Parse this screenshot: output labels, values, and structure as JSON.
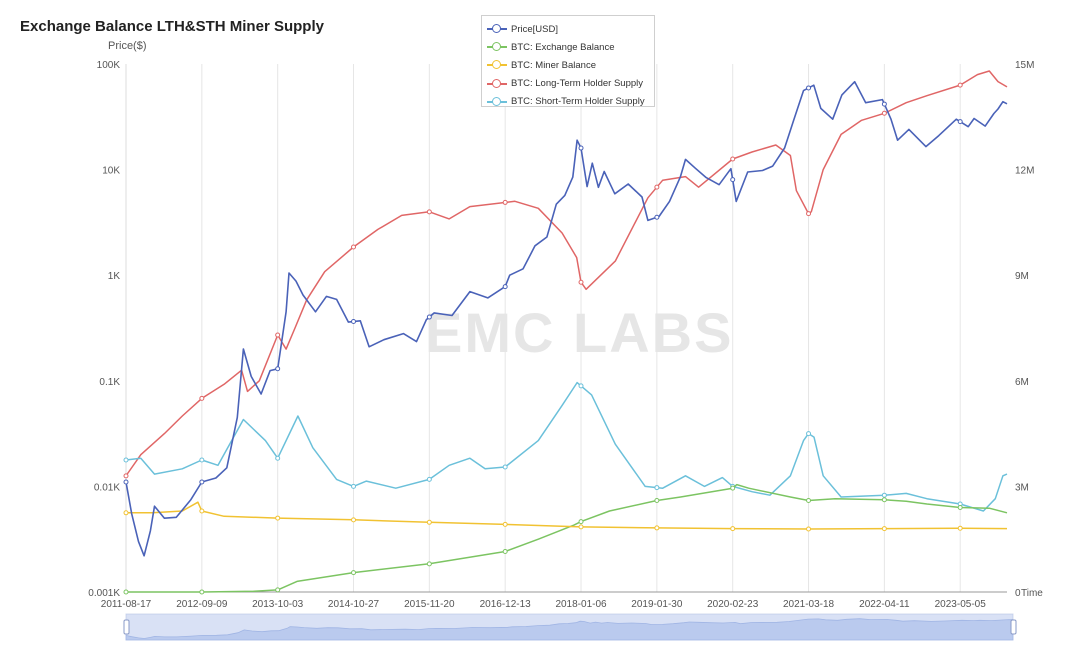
{
  "header": {
    "title": "Exchange Balance LTH&STH Miner Supply",
    "ylabel_left": "Price($)",
    "xlabel": "Time",
    "watermark": "EMC LABS"
  },
  "legend": [
    {
      "label": "Price[USD]",
      "color": "#4a62b8"
    },
    {
      "label": "BTC: Exchange Balance",
      "color": "#7cc462"
    },
    {
      "label": "BTC: Miner Balance",
      "color": "#f1c232"
    },
    {
      "label": "BTC: Long-Term Holder Supply",
      "color": "#e06666"
    },
    {
      "label": "BTC: Short-Term Holder Supply",
      "color": "#6bc0da"
    }
  ],
  "chart_data": {
    "type": "line",
    "x_ticks": [
      "2011-08-17",
      "2012-09-09",
      "2013-10-03",
      "2014-10-27",
      "2015-11-20",
      "2016-12-13",
      "2018-01-06",
      "2019-01-30",
      "2020-02-23",
      "2021-03-18",
      "2022-04-11",
      "2023-05-05"
    ],
    "y_left_ticks": [
      "0.001K",
      "0.01K",
      "0.1K",
      "1K",
      "10K",
      "100K"
    ],
    "y_left_scale": "log",
    "y_left_range": [
      1,
      100000
    ],
    "y_right_ticks": [
      "0",
      "3M",
      "6M",
      "9M",
      "12M",
      "15M"
    ],
    "y_right_range": [
      0,
      15000000
    ],
    "x_range": [
      "2011-08-17",
      "2023-12-31"
    ],
    "grid": "vertical",
    "series": [
      {
        "name": "Price[USD]",
        "axis": "left",
        "color": "#4a62b8",
        "points": [
          [
            "2011-08-17",
            11
          ],
          [
            "2011-09-15",
            5.5
          ],
          [
            "2011-10-20",
            3
          ],
          [
            "2011-11-18",
            2.2
          ],
          [
            "2011-12-20",
            3.8
          ],
          [
            "2012-01-10",
            6.5
          ],
          [
            "2012-03-01",
            5
          ],
          [
            "2012-05-01",
            5.1
          ],
          [
            "2012-07-15",
            7.5
          ],
          [
            "2012-09-09",
            11
          ],
          [
            "2012-11-20",
            12
          ],
          [
            "2013-01-15",
            15
          ],
          [
            "2013-03-10",
            45
          ],
          [
            "2013-04-10",
            200
          ],
          [
            "2013-05-20",
            110
          ],
          [
            "2013-07-10",
            75
          ],
          [
            "2013-08-25",
            125
          ],
          [
            "2013-10-03",
            130
          ],
          [
            "2013-11-15",
            450
          ],
          [
            "2013-11-30",
            1050
          ],
          [
            "2014-01-05",
            880
          ],
          [
            "2014-02-10",
            650
          ],
          [
            "2014-04-15",
            450
          ],
          [
            "2014-06-10",
            630
          ],
          [
            "2014-08-01",
            590
          ],
          [
            "2014-10-01",
            360
          ],
          [
            "2014-12-01",
            370
          ],
          [
            "2015-01-15",
            210
          ],
          [
            "2015-04-01",
            245
          ],
          [
            "2015-07-10",
            280
          ],
          [
            "2015-09-15",
            235
          ],
          [
            "2015-11-05",
            380
          ],
          [
            "2015-12-15",
            440
          ],
          [
            "2016-03-15",
            415
          ],
          [
            "2016-06-15",
            700
          ],
          [
            "2016-09-15",
            610
          ],
          [
            "2016-12-13",
            780
          ],
          [
            "2017-01-05",
            1000
          ],
          [
            "2017-03-15",
            1150
          ],
          [
            "2017-05-15",
            1900
          ],
          [
            "2017-07-15",
            2300
          ],
          [
            "2017-09-01",
            4700
          ],
          [
            "2017-10-15",
            5700
          ],
          [
            "2017-11-25",
            8500
          ],
          [
            "2017-12-17",
            19000
          ],
          [
            "2018-01-06",
            16000
          ],
          [
            "2018-02-06",
            6900
          ],
          [
            "2018-03-05",
            11500
          ],
          [
            "2018-04-05",
            6800
          ],
          [
            "2018-05-05",
            9600
          ],
          [
            "2018-06-28",
            5900
          ],
          [
            "2018-09-05",
            7300
          ],
          [
            "2018-11-15",
            5500
          ],
          [
            "2018-12-15",
            3300
          ],
          [
            "2019-02-10",
            3600
          ],
          [
            "2019-04-05",
            5000
          ],
          [
            "2019-05-30",
            8500
          ],
          [
            "2019-06-26",
            12500
          ],
          [
            "2019-08-15",
            10300
          ],
          [
            "2019-10-10",
            8400
          ],
          [
            "2019-12-15",
            7200
          ],
          [
            "2020-02-14",
            10200
          ],
          [
            "2020-03-12",
            5000
          ],
          [
            "2020-05-10",
            9500
          ],
          [
            "2020-07-25",
            9800
          ],
          [
            "2020-09-15",
            10800
          ],
          [
            "2020-11-15",
            16000
          ],
          [
            "2020-12-31",
            29000
          ],
          [
            "2021-02-20",
            56000
          ],
          [
            "2021-04-14",
            63000
          ],
          [
            "2021-05-20",
            38000
          ],
          [
            "2021-07-20",
            30000
          ],
          [
            "2021-09-05",
            51000
          ],
          [
            "2021-11-10",
            68000
          ],
          [
            "2022-01-05",
            43000
          ],
          [
            "2022-04-01",
            46000
          ],
          [
            "2022-05-15",
            30000
          ],
          [
            "2022-06-18",
            19000
          ],
          [
            "2022-08-15",
            24000
          ],
          [
            "2022-11-10",
            16500
          ],
          [
            "2023-01-15",
            21000
          ],
          [
            "2023-04-15",
            30000
          ],
          [
            "2023-06-15",
            25500
          ],
          [
            "2023-07-15",
            30500
          ],
          [
            "2023-09-10",
            25800
          ],
          [
            "2023-10-25",
            34000
          ],
          [
            "2023-11-15",
            37500
          ],
          [
            "2023-12-10",
            44000
          ],
          [
            "2023-12-31",
            42000
          ]
        ]
      },
      {
        "name": "BTC: Exchange Balance",
        "axis": "right",
        "color": "#7cc462",
        "points": [
          [
            "2011-08-17",
            0
          ],
          [
            "2012-09-09",
            0
          ],
          [
            "2013-06-01",
            20000
          ],
          [
            "2013-10-03",
            60000
          ],
          [
            "2014-01-10",
            300000
          ],
          [
            "2014-10-27",
            550000
          ],
          [
            "2015-11-20",
            800000
          ],
          [
            "2016-12-13",
            1150000
          ],
          [
            "2017-06-01",
            1500000
          ],
          [
            "2017-12-01",
            1900000
          ],
          [
            "2018-01-06",
            2000000
          ],
          [
            "2018-06-01",
            2300000
          ],
          [
            "2019-01-30",
            2600000
          ],
          [
            "2019-06-01",
            2700000
          ],
          [
            "2020-02-23",
            2950000
          ],
          [
            "2020-03-15",
            3050000
          ],
          [
            "2020-05-15",
            2950000
          ],
          [
            "2020-12-15",
            2700000
          ],
          [
            "2021-03-18",
            2600000
          ],
          [
            "2021-08-01",
            2650000
          ],
          [
            "2022-04-11",
            2620000
          ],
          [
            "2022-08-01",
            2580000
          ],
          [
            "2022-11-15",
            2500000
          ],
          [
            "2023-05-05",
            2400000
          ],
          [
            "2023-10-01",
            2380000
          ],
          [
            "2023-12-31",
            2250000
          ]
        ]
      },
      {
        "name": "BTC: Miner Balance",
        "axis": "right",
        "color": "#f1c232",
        "points": [
          [
            "2011-08-17",
            2250000
          ],
          [
            "2012-01-01",
            2250000
          ],
          [
            "2012-06-01",
            2300000
          ],
          [
            "2012-08-20",
            2550000
          ],
          [
            "2012-09-09",
            2300000
          ],
          [
            "2013-01-01",
            2150000
          ],
          [
            "2013-10-03",
            2100000
          ],
          [
            "2014-10-27",
            2050000
          ],
          [
            "2015-11-20",
            1980000
          ],
          [
            "2016-12-13",
            1920000
          ],
          [
            "2018-01-06",
            1850000
          ],
          [
            "2019-01-30",
            1820000
          ],
          [
            "2020-02-23",
            1800000
          ],
          [
            "2021-03-18",
            1790000
          ],
          [
            "2022-04-11",
            1800000
          ],
          [
            "2023-05-05",
            1810000
          ],
          [
            "2023-12-31",
            1800000
          ]
        ]
      },
      {
        "name": "BTC: Long-Term Holder Supply",
        "axis": "right",
        "color": "#e06666",
        "points": [
          [
            "2011-08-17",
            3300000
          ],
          [
            "2011-11-01",
            3900000
          ],
          [
            "2012-03-01",
            4500000
          ],
          [
            "2012-06-01",
            5000000
          ],
          [
            "2012-09-09",
            5500000
          ],
          [
            "2013-01-01",
            5900000
          ],
          [
            "2013-04-01",
            6300000
          ],
          [
            "2013-05-01",
            5700000
          ],
          [
            "2013-07-01",
            6000000
          ],
          [
            "2013-10-03",
            7300000
          ],
          [
            "2013-11-15",
            6900000
          ],
          [
            "2013-12-31",
            7500000
          ],
          [
            "2014-03-01",
            8300000
          ],
          [
            "2014-06-01",
            9100000
          ],
          [
            "2014-10-27",
            9800000
          ],
          [
            "2015-03-01",
            10300000
          ],
          [
            "2015-07-01",
            10700000
          ],
          [
            "2015-11-20",
            10800000
          ],
          [
            "2016-03-01",
            10600000
          ],
          [
            "2016-06-15",
            10950000
          ],
          [
            "2017-02-01",
            11100000
          ],
          [
            "2017-06-01",
            10900000
          ],
          [
            "2017-10-01",
            10200000
          ],
          [
            "2017-12-15",
            9500000
          ],
          [
            "2018-01-06",
            8800000
          ],
          [
            "2018-02-01",
            8600000
          ],
          [
            "2018-07-01",
            9400000
          ],
          [
            "2018-12-15",
            11200000
          ],
          [
            "2019-03-01",
            11700000
          ],
          [
            "2019-06-26",
            11800000
          ],
          [
            "2019-09-01",
            11500000
          ],
          [
            "2020-02-23",
            12300000
          ],
          [
            "2020-06-01",
            12500000
          ],
          [
            "2020-10-01",
            12700000
          ],
          [
            "2020-12-15",
            12400000
          ],
          [
            "2021-01-15",
            11400000
          ],
          [
            "2021-03-18",
            10750000
          ],
          [
            "2021-04-01",
            10800000
          ],
          [
            "2021-06-01",
            12000000
          ],
          [
            "2021-09-01",
            13000000
          ],
          [
            "2021-12-15",
            13400000
          ],
          [
            "2022-04-11",
            13600000
          ],
          [
            "2022-08-01",
            13900000
          ],
          [
            "2022-11-15",
            14100000
          ],
          [
            "2023-05-05",
            14400000
          ],
          [
            "2023-08-01",
            14700000
          ],
          [
            "2023-10-01",
            14800000
          ],
          [
            "2023-11-15",
            14500000
          ],
          [
            "2023-12-31",
            14350000
          ]
        ]
      },
      {
        "name": "BTC: Short-Term Holder Supply",
        "axis": "right",
        "color": "#6bc0da",
        "points": [
          [
            "2011-08-17",
            3750000
          ],
          [
            "2011-11-01",
            3800000
          ],
          [
            "2012-01-10",
            3350000
          ],
          [
            "2012-06-01",
            3500000
          ],
          [
            "2012-09-09",
            3750000
          ],
          [
            "2012-12-01",
            3600000
          ],
          [
            "2013-04-10",
            4900000
          ],
          [
            "2013-08-01",
            4300000
          ],
          [
            "2013-10-03",
            3800000
          ],
          [
            "2014-01-15",
            5000000
          ],
          [
            "2014-04-01",
            4100000
          ],
          [
            "2014-08-01",
            3200000
          ],
          [
            "2014-10-27",
            3000000
          ],
          [
            "2015-01-01",
            3150000
          ],
          [
            "2015-06-01",
            2950000
          ],
          [
            "2015-11-20",
            3200000
          ],
          [
            "2016-03-01",
            3600000
          ],
          [
            "2016-06-15",
            3800000
          ],
          [
            "2016-09-01",
            3500000
          ],
          [
            "2016-12-13",
            3550000
          ],
          [
            "2017-06-01",
            4300000
          ],
          [
            "2017-10-01",
            5300000
          ],
          [
            "2017-12-17",
            5950000
          ],
          [
            "2018-03-01",
            5600000
          ],
          [
            "2018-07-01",
            4200000
          ],
          [
            "2018-12-01",
            3000000
          ],
          [
            "2019-03-01",
            2950000
          ],
          [
            "2019-06-26",
            3300000
          ],
          [
            "2019-10-01",
            3000000
          ],
          [
            "2020-01-01",
            3250000
          ],
          [
            "2020-02-23",
            3000000
          ],
          [
            "2020-06-01",
            2850000
          ],
          [
            "2020-09-01",
            2750000
          ],
          [
            "2020-12-15",
            3300000
          ],
          [
            "2021-02-20",
            4300000
          ],
          [
            "2021-03-18",
            4500000
          ],
          [
            "2021-04-15",
            4400000
          ],
          [
            "2021-06-01",
            3300000
          ],
          [
            "2021-09-01",
            2700000
          ],
          [
            "2022-04-11",
            2750000
          ],
          [
            "2022-08-01",
            2800000
          ],
          [
            "2022-11-15",
            2650000
          ],
          [
            "2023-05-05",
            2500000
          ],
          [
            "2023-09-01",
            2300000
          ],
          [
            "2023-11-01",
            2650000
          ],
          [
            "2023-12-10",
            3300000
          ],
          [
            "2023-12-31",
            3350000
          ]
        ]
      }
    ]
  }
}
